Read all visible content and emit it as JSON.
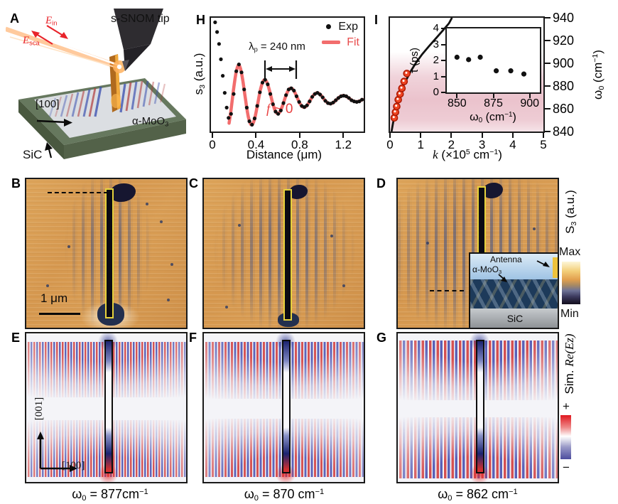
{
  "panelA": {
    "letter": "A",
    "tip_label": "s-SNOM tip",
    "e_in": {
      "pre": "E",
      "sub": "in"
    },
    "e_sca": {
      "pre": "E",
      "sub": "sca"
    },
    "axis_100": "[100]",
    "material": {
      "pre": "α-MoO",
      "sub": "3"
    },
    "substrate": "SiC"
  },
  "panelH": {
    "letter": "H"
  },
  "panelI": {
    "letter": "I"
  },
  "panelB": {
    "letter": "B",
    "scalebar": "1 μm"
  },
  "panelC": {
    "letter": "C"
  },
  "panelD": {
    "letter": "D",
    "inset": {
      "antenna": "Antenna",
      "material": {
        "pre": "α-MoO",
        "sub": "3"
      },
      "substrate": "SiC"
    }
  },
  "panelE": {
    "letter": "E",
    "axis_vertical": "[001]",
    "axis_horizontal": "[100]"
  },
  "panelF": {
    "letter": "F"
  },
  "panelG": {
    "letter": "G"
  },
  "colorbars": {
    "s3": {
      "label": {
        "pre": "S",
        "sub": "3",
        "post": " (a.u.)"
      },
      "max": "Max",
      "min": "Min",
      "gradient_top_to_bottom": [
        "#fdf6d8",
        "#f3cf7a",
        "#e2a04e",
        "#6d7296",
        "#3c3a5e",
        "#120e1d"
      ]
    },
    "sim": {
      "label": {
        "pre": "Sim. ",
        "it": "Re(Ez)"
      },
      "plus": "+",
      "minus": "−",
      "gradient_top_to_bottom": [
        "#e0181f",
        "#ffffff",
        "#4d4d9e"
      ]
    }
  },
  "bottom_labels": [
    {
      "pre": "ω",
      "sub": "0",
      "mid": " = 877cm",
      "sup": "−1"
    },
    {
      "pre": "ω",
      "sub": "0",
      "mid": " = 870 cm",
      "sup": "−1"
    },
    {
      "pre": "ω",
      "sub": "0",
      "mid": " = 862 cm",
      "sup": "−1"
    }
  ],
  "chart_data": [
    {
      "id": "H",
      "type": "scatter",
      "xlabel": "Distance (μm)",
      "ylabel_parts": {
        "pre": "s",
        "sub": "3",
        "post": " (a.u.)"
      },
      "xlim": [
        0,
        1.38
      ],
      "ylim": [
        0,
        1
      ],
      "xticks": [
        0,
        0.4,
        0.8,
        1.2
      ],
      "grid": false,
      "legend": [
        "Exp",
        "Fit"
      ],
      "legend_position": "top-right",
      "annotations": {
        "lambda_parts": {
          "pre": "λ",
          "sub": "p",
          "post": " = 240 nm"
        },
        "f_parts": {
          "it": "f",
          "post": " ~ 0"
        }
      },
      "colors": {
        "exp": "#111111",
        "fit": "#f26d6d"
      },
      "fit": {
        "model": "damped_cosine",
        "baseline": 0.285,
        "amp": 0.3,
        "amp_cap": 0.3,
        "peak_x": 0.23,
        "lambda_um": 0.24,
        "decay_um": 0.42,
        "x_start": 0.14,
        "x_end": 1.37
      },
      "exp_points": [
        [
          0.012,
          0.96
        ],
        [
          0.03,
          0.875
        ],
        [
          0.048,
          0.77
        ],
        [
          0.065,
          0.635
        ],
        [
          0.082,
          0.49
        ],
        [
          0.1,
          0.34
        ],
        [
          0.118,
          0.21
        ],
        [
          0.135,
          0.12
        ],
        [
          0.158,
          0.155
        ],
        [
          0.182,
          0.33
        ],
        [
          0.206,
          0.53
        ],
        [
          0.23,
          0.59
        ],
        [
          0.254,
          0.52
        ],
        [
          0.278,
          0.37
        ],
        [
          0.302,
          0.21
        ],
        [
          0.326,
          0.09
        ],
        [
          0.35,
          0.06
        ],
        [
          0.374,
          0.115
        ],
        [
          0.398,
          0.225
        ],
        [
          0.422,
          0.345
        ],
        [
          0.446,
          0.43
        ],
        [
          0.47,
          0.455
        ],
        [
          0.494,
          0.415
        ],
        [
          0.518,
          0.33
        ],
        [
          0.542,
          0.24
        ],
        [
          0.566,
          0.175
        ],
        [
          0.59,
          0.155
        ],
        [
          0.614,
          0.185
        ],
        [
          0.638,
          0.25
        ],
        [
          0.662,
          0.32
        ],
        [
          0.686,
          0.37
        ],
        [
          0.71,
          0.38
        ],
        [
          0.734,
          0.36
        ],
        [
          0.758,
          0.31
        ],
        [
          0.782,
          0.26
        ],
        [
          0.806,
          0.225
        ],
        [
          0.83,
          0.215
        ],
        [
          0.854,
          0.23
        ],
        [
          0.878,
          0.265
        ],
        [
          0.902,
          0.305
        ],
        [
          0.926,
          0.33
        ],
        [
          0.95,
          0.34
        ],
        [
          0.974,
          0.325
        ],
        [
          0.998,
          0.3
        ],
        [
          1.022,
          0.27
        ],
        [
          1.046,
          0.25
        ],
        [
          1.07,
          0.245
        ],
        [
          1.094,
          0.255
        ],
        [
          1.118,
          0.275
        ],
        [
          1.142,
          0.295
        ],
        [
          1.166,
          0.31
        ],
        [
          1.19,
          0.315
        ],
        [
          1.214,
          0.31
        ],
        [
          1.238,
          0.295
        ],
        [
          1.262,
          0.275
        ],
        [
          1.286,
          0.265
        ],
        [
          1.31,
          0.26
        ],
        [
          1.334,
          0.265
        ],
        [
          1.358,
          0.28
        ]
      ]
    },
    {
      "id": "I",
      "type": "line+scatter",
      "xlabel_parts": {
        "it": "k",
        "p1": " (×10",
        "s1": "5",
        "p2": " cm",
        "s2": "−1",
        "p3": ")"
      },
      "ylabel_parts": {
        "p0": "ω",
        "sub": "0",
        "p1": " (cm",
        "s1": "−1",
        "p2": ")"
      },
      "xlim": [
        0,
        5
      ],
      "ylim": [
        840,
        940
      ],
      "xticks": [
        0,
        1,
        2,
        3,
        4,
        5
      ],
      "yticks": [
        940,
        920,
        900,
        880,
        860,
        840
      ],
      "yaxis_side": "right",
      "colors": {
        "curve": "#111111",
        "points": "#ee4422",
        "band": "#d88b9e"
      },
      "dispersion_curve": [
        [
          0.05,
          840
        ],
        [
          0.09,
          846
        ],
        [
          0.14,
          853
        ],
        [
          0.2,
          860
        ],
        [
          0.27,
          867
        ],
        [
          0.35,
          874
        ],
        [
          0.45,
          881
        ],
        [
          0.56,
          887
        ],
        [
          0.7,
          894
        ],
        [
          0.86,
          901
        ],
        [
          1.05,
          908
        ],
        [
          1.27,
          915
        ],
        [
          1.5,
          922
        ],
        [
          1.73,
          929
        ],
        [
          1.92,
          935
        ],
        [
          2.02,
          940
        ]
      ],
      "exp_points": [
        [
          0.14,
          852
        ],
        [
          0.18,
          857
        ],
        [
          0.22,
          862
        ],
        [
          0.27,
          868
        ],
        [
          0.33,
          873
        ],
        [
          0.39,
          878
        ],
        [
          0.46,
          884
        ],
        [
          0.55,
          891
        ]
      ]
    },
    {
      "id": "I-inset",
      "type": "scatter",
      "xlabel_parts": {
        "p0": "ω",
        "sub": "0",
        "p1": " (cm",
        "s1": "−1",
        "p2": ")"
      },
      "ylabel": "τ (ps)",
      "xlim": [
        843,
        907
      ],
      "ylim": [
        0,
        4
      ],
      "xticks": [
        850,
        875,
        900
      ],
      "yticks": [
        4,
        3,
        2,
        1,
        0
      ],
      "colors": {
        "points": "#111111"
      },
      "points": [
        [
          850,
          2.2
        ],
        [
          858,
          2.05
        ],
        [
          866,
          2.2
        ],
        [
          877,
          1.35
        ],
        [
          887,
          1.35
        ],
        [
          896,
          1.15
        ]
      ]
    }
  ]
}
